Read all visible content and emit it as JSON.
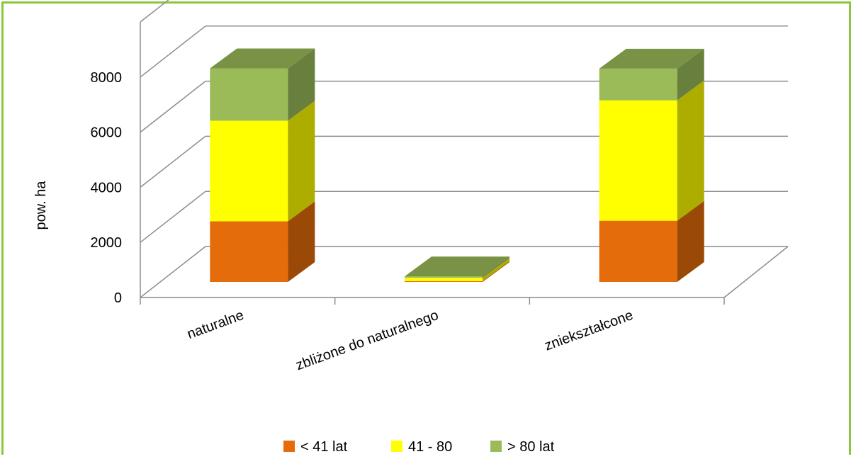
{
  "chart_data": {
    "type": "bar",
    "stacked": true,
    "three_d": true,
    "title": "",
    "xlabel": "",
    "ylabel": "pow. ha",
    "ylim": [
      0,
      8000
    ],
    "yticks": [
      "0",
      "2000",
      "4000",
      "6000",
      "8000"
    ],
    "categories": [
      "naturalne",
      "zbliżone do naturalnego",
      "zniekształcone"
    ],
    "series": [
      {
        "name": "< 41 lat",
        "color": "#e46c0a",
        "values": [
          2200,
          30,
          2220
        ]
      },
      {
        "name": "41 - 80",
        "color": "#ffff00",
        "values": [
          3650,
          120,
          4370
        ]
      },
      {
        "name": "> 80 lat",
        "color": "#9bbb59",
        "values": [
          1900,
          50,
          1150
        ]
      }
    ],
    "grid": true,
    "legend_position": "bottom"
  },
  "frame": {
    "border_color": "#8cc63f"
  }
}
